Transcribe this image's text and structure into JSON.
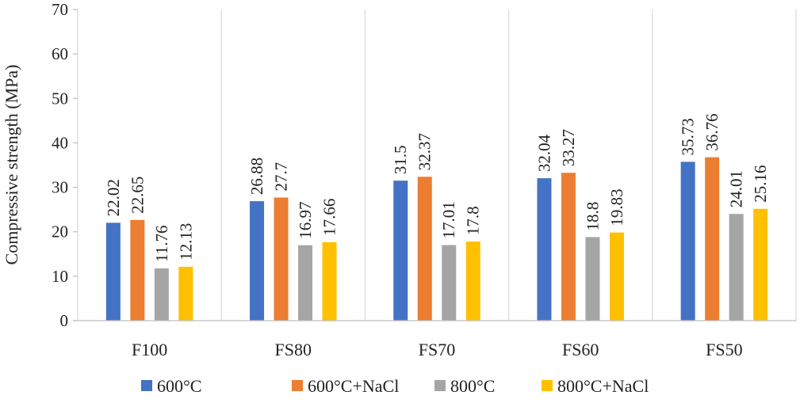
{
  "chart_data": {
    "type": "bar",
    "title": "",
    "xlabel": "",
    "ylabel": "Compressive strength (MPa)",
    "ylim": [
      0,
      70
    ],
    "yticks": [
      0,
      10,
      20,
      30,
      40,
      50,
      60,
      70
    ],
    "grid": "vertical separators between categories",
    "legend": "bottom",
    "categories": [
      "F100",
      "FS80",
      "FS70",
      "FS60",
      "FS50"
    ],
    "series": [
      {
        "name": "600°C",
        "color": "#4472C4",
        "values": [
          22.02,
          26.88,
          31.5,
          32.04,
          35.73
        ]
      },
      {
        "name": "600°C+NaCl",
        "color": "#ED7D31",
        "values": [
          22.65,
          27.7,
          32.37,
          33.27,
          36.76
        ]
      },
      {
        "name": "800°C",
        "color": "#A5A5A5",
        "values": [
          11.76,
          16.97,
          17.01,
          18.8,
          24.01
        ]
      },
      {
        "name": "800°C+NaCl",
        "color": "#FFC000",
        "values": [
          12.13,
          17.66,
          17.8,
          19.83,
          25.16
        ]
      }
    ]
  }
}
